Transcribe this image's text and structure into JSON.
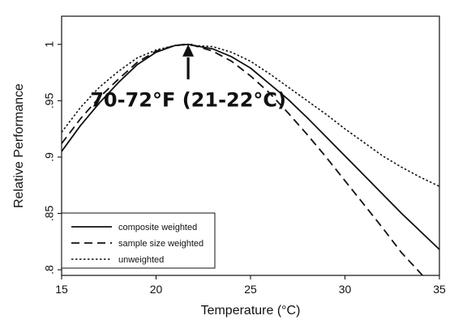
{
  "chart_data": {
    "type": "line",
    "title": "",
    "xlabel": "Temperature (°C)",
    "ylabel": "Relative Performance",
    "xlim": [
      15,
      35
    ],
    "ylim": [
      0.795,
      1.025
    ],
    "x_ticks": [
      15,
      20,
      25,
      30,
      35
    ],
    "x_tick_labels": [
      "15",
      "20",
      "25",
      "30",
      "35"
    ],
    "y_ticks": [
      0.8,
      0.85,
      0.9,
      0.95,
      1.0
    ],
    "y_tick_labels": [
      ".8",
      ".85",
      ".9",
      ".95",
      "1"
    ],
    "grid": false,
    "legend_position": "bottom-left",
    "series": [
      {
        "name": "composite weighted",
        "line_style": "solid",
        "color": "#111111",
        "x": [
          15,
          16,
          17,
          18,
          19,
          20,
          21,
          21.7,
          22,
          23,
          24,
          25,
          26,
          27,
          28,
          29,
          30,
          31,
          32,
          33,
          34,
          35
        ],
        "y": [
          0.905,
          0.928,
          0.948,
          0.966,
          0.982,
          0.993,
          0.999,
          1.0,
          0.999,
          0.996,
          0.989,
          0.979,
          0.965,
          0.951,
          0.935,
          0.918,
          0.901,
          0.884,
          0.867,
          0.85,
          0.834,
          0.818
        ]
      },
      {
        "name": "sample size weighted",
        "line_style": "dashed",
        "color": "#111111",
        "x": [
          15,
          16,
          17,
          18,
          19,
          20,
          21,
          21.5,
          22,
          23,
          24,
          25,
          26,
          27,
          28,
          29,
          30,
          31,
          32,
          33,
          34,
          35
        ],
        "y": [
          0.912,
          0.934,
          0.953,
          0.969,
          0.984,
          0.994,
          0.999,
          1.0,
          0.999,
          0.994,
          0.985,
          0.972,
          0.957,
          0.939,
          0.92,
          0.9,
          0.879,
          0.858,
          0.837,
          0.815,
          0.797,
          0.778
        ]
      },
      {
        "name": "unweighted",
        "line_style": "dotted",
        "color": "#111111",
        "x": [
          15,
          16,
          17,
          18,
          19,
          20,
          21,
          21.9,
          22,
          23,
          24,
          25,
          26,
          27,
          28,
          29,
          30,
          31,
          32,
          33,
          34,
          35
        ],
        "y": [
          0.922,
          0.944,
          0.962,
          0.976,
          0.988,
          0.995,
          0.999,
          1.0,
          0.999,
          0.998,
          0.993,
          0.985,
          0.974,
          0.962,
          0.95,
          0.938,
          0.925,
          0.913,
          0.901,
          0.891,
          0.882,
          0.874
        ]
      }
    ],
    "annotations": [
      {
        "text": "70-72°F (21-22°C)",
        "x": 21.7,
        "y": 0.945,
        "arrow_from": [
          21.7,
          0.969
        ],
        "arrow_to": [
          21.7,
          1.0
        ]
      }
    ]
  }
}
